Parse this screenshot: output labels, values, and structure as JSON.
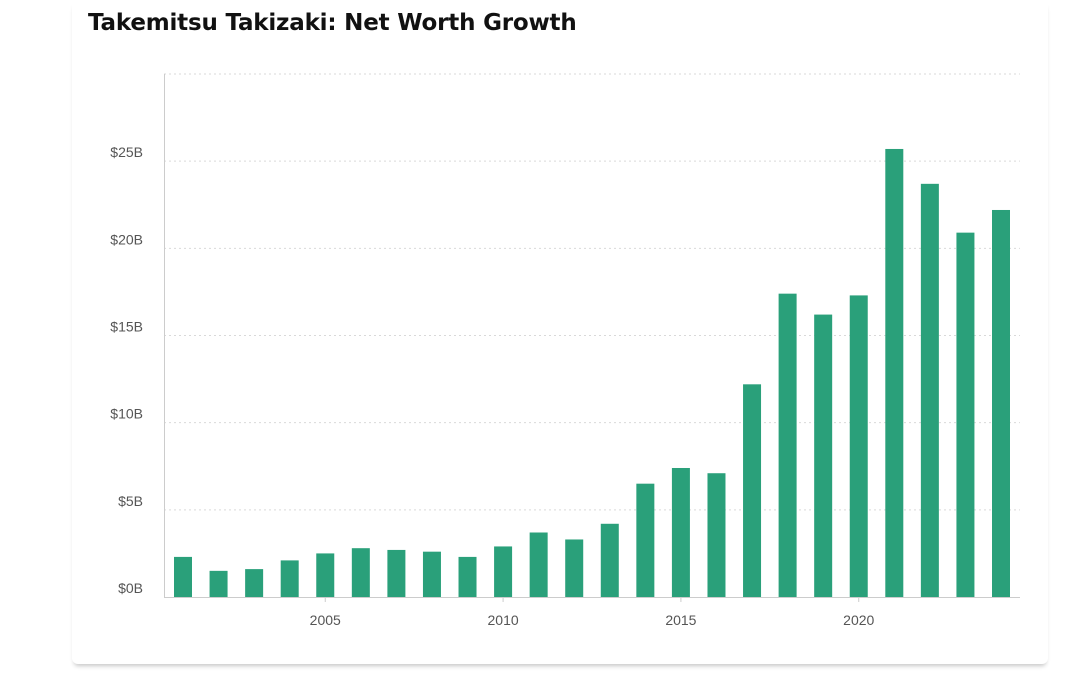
{
  "chart_data": {
    "type": "bar",
    "title": "Takemitsu Takizaki: Net Worth Growth",
    "xlabel": "",
    "ylabel": "",
    "x": [
      2001,
      2002,
      2003,
      2004,
      2005,
      2006,
      2007,
      2008,
      2009,
      2010,
      2011,
      2012,
      2013,
      2014,
      2015,
      2016,
      2017,
      2018,
      2019,
      2020,
      2021,
      2022,
      2023,
      2024
    ],
    "values": [
      2.3,
      1.5,
      1.6,
      2.1,
      2.5,
      2.8,
      2.7,
      2.6,
      2.3,
      2.9,
      3.7,
      3.3,
      4.2,
      6.5,
      7.4,
      7.1,
      12.2,
      17.4,
      16.2,
      17.3,
      25.7,
      23.7,
      20.9,
      22.2
    ],
    "ylim": [
      0,
      30
    ],
    "y_ticks": [
      0,
      5,
      10,
      15,
      20,
      25
    ],
    "y_tick_labels": [
      "$0B",
      "$5B",
      "$10B",
      "$15B",
      "$20B",
      "$25B"
    ],
    "x_ticks": [
      2005,
      2010,
      2015,
      2020
    ],
    "x_tick_labels": [
      "2005",
      "2010",
      "2015",
      "2020"
    ],
    "grid": "horizontal-dotted",
    "bar_color": "#2aa07a",
    "grid_color": "#d9d9d9",
    "axis_color": "#cccccc"
  }
}
